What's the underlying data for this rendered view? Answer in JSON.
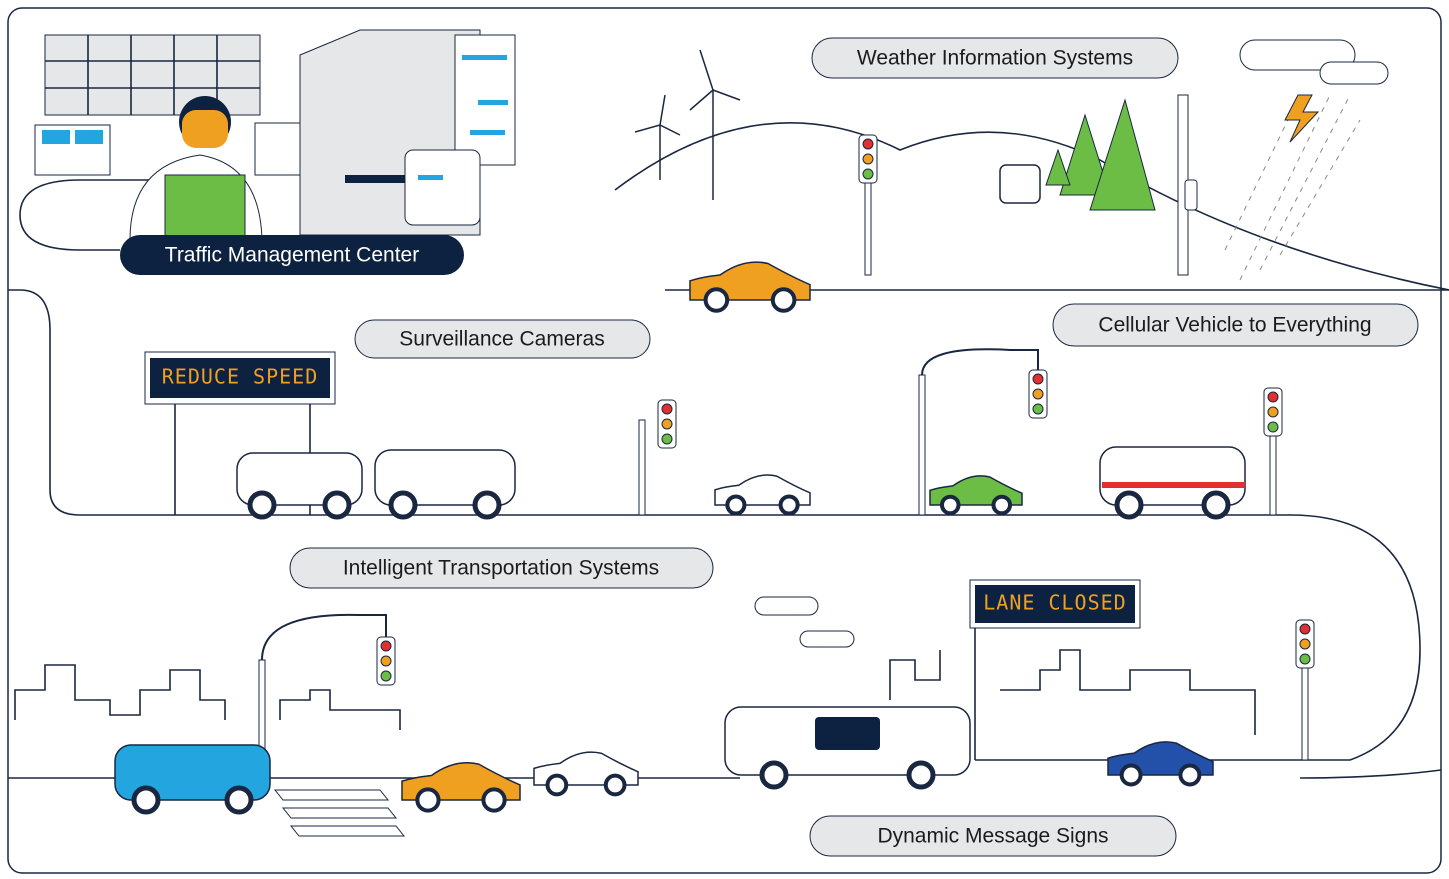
{
  "labels": {
    "weather": "Weather Information Systems",
    "tmc": "Traffic Management Center",
    "surveillance": "Surveillance Cameras",
    "cv2x": "Cellular Vehicle to Everything",
    "its": "Intelligent Transportation Systems",
    "dms": "Dynamic Message Signs"
  },
  "signs": {
    "top": "REDUCE SPEED",
    "bottom": "LANE CLOSED"
  }
}
